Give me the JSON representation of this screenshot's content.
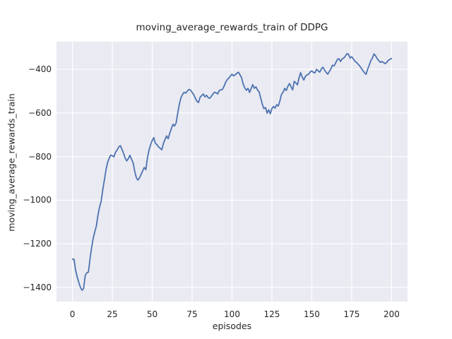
{
  "chart_data": {
    "type": "line",
    "title": "moving_average_rewards_train of DDPG",
    "xlabel": "episodes",
    "ylabel": "moving_average_rewards_train",
    "x_ticks": [
      0,
      25,
      50,
      75,
      100,
      125,
      150,
      175,
      200
    ],
    "y_ticks": [
      -400,
      -600,
      -800,
      -1000,
      -1200,
      -1400
    ],
    "xlim": [
      -10,
      210
    ],
    "ylim": [
      -1465,
      -273
    ],
    "grid": true,
    "legend_visible": false,
    "styles": {
      "figure_bg": "#ffffff",
      "plot_bg": "#eaeaf2",
      "grid_color": "#ffffff",
      "text_color": "#262626",
      "line_color": "#4c72b0"
    },
    "series": [
      {
        "name": "moving_average_rewards_train",
        "color": "#4c72b0",
        "x_start": 0,
        "x_step": 1,
        "y": [
          -1270,
          -1271,
          -1322,
          -1352,
          -1378,
          -1400,
          -1413,
          -1405,
          -1345,
          -1333,
          -1330,
          -1270,
          -1218,
          -1175,
          -1145,
          -1118,
          -1068,
          -1032,
          -1005,
          -952,
          -908,
          -862,
          -828,
          -808,
          -793,
          -796,
          -801,
          -780,
          -770,
          -756,
          -750,
          -766,
          -785,
          -806,
          -820,
          -810,
          -794,
          -812,
          -828,
          -866,
          -896,
          -908,
          -898,
          -882,
          -866,
          -850,
          -860,
          -806,
          -770,
          -745,
          -726,
          -713,
          -740,
          -745,
          -756,
          -762,
          -769,
          -740,
          -722,
          -705,
          -718,
          -692,
          -672,
          -652,
          -660,
          -645,
          -600,
          -560,
          -530,
          -515,
          -505,
          -509,
          -500,
          -492,
          -495,
          -506,
          -516,
          -532,
          -546,
          -552,
          -528,
          -520,
          -513,
          -526,
          -519,
          -529,
          -533,
          -524,
          -514,
          -505,
          -507,
          -513,
          -497,
          -494,
          -492,
          -478,
          -460,
          -447,
          -440,
          -430,
          -422,
          -430,
          -425,
          -418,
          -413,
          -425,
          -438,
          -467,
          -485,
          -496,
          -487,
          -506,
          -488,
          -470,
          -487,
          -480,
          -495,
          -503,
          -532,
          -560,
          -580,
          -575,
          -601,
          -585,
          -604,
          -580,
          -570,
          -578,
          -562,
          -568,
          -545,
          -515,
          -505,
          -487,
          -497,
          -478,
          -465,
          -480,
          -494,
          -455,
          -462,
          -471,
          -440,
          -415,
          -435,
          -449,
          -432,
          -425,
          -423,
          -412,
          -407,
          -414,
          -416,
          -400,
          -406,
          -413,
          -398,
          -390,
          -403,
          -414,
          -422,
          -410,
          -397,
          -381,
          -384,
          -370,
          -355,
          -351,
          -364,
          -352,
          -348,
          -340,
          -328,
          -330,
          -348,
          -342,
          -352,
          -362,
          -368,
          -376,
          -384,
          -395,
          -405,
          -415,
          -423,
          -400,
          -381,
          -360,
          -348,
          -329,
          -338,
          -351,
          -360,
          -368,
          -364,
          -369,
          -374,
          -368,
          -358,
          -354,
          -350
        ]
      }
    ]
  }
}
